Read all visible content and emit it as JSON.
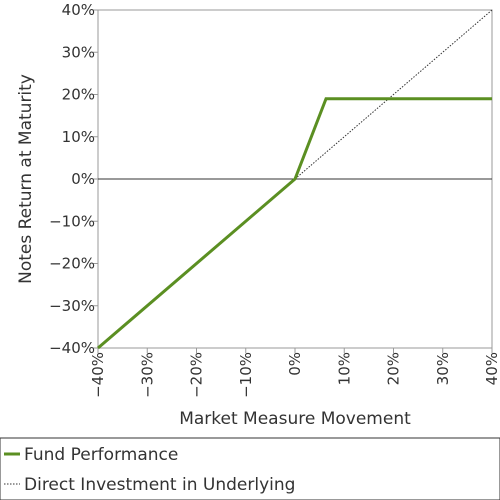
{
  "chart_data": {
    "type": "line",
    "xlabel": "Market Measure Movement",
    "ylabel": "Notes Return at Maturity",
    "xlim": [
      -40,
      40
    ],
    "ylim": [
      -40,
      40
    ],
    "x_ticks": [
      "−40%",
      "−30%",
      "−20%",
      "−10%",
      "0%",
      "10%",
      "20%",
      "30%",
      "40%"
    ],
    "y_ticks": [
      "−40%",
      "−30%",
      "−20%",
      "−10%",
      "0%",
      "10%",
      "20%",
      "30%",
      "40%"
    ],
    "grid": false,
    "legend_position": "bottom",
    "series": [
      {
        "name": "Fund Performance",
        "color": "#5b8f22",
        "style": "solid",
        "x": [
          -40,
          0,
          6.3,
          40
        ],
        "y": [
          -40,
          0,
          19,
          19
        ]
      },
      {
        "name": "Direct Investment in Underlying",
        "color": "#333333",
        "style": "dotted",
        "x": [
          0,
          40
        ],
        "y": [
          0,
          40
        ]
      }
    ]
  }
}
